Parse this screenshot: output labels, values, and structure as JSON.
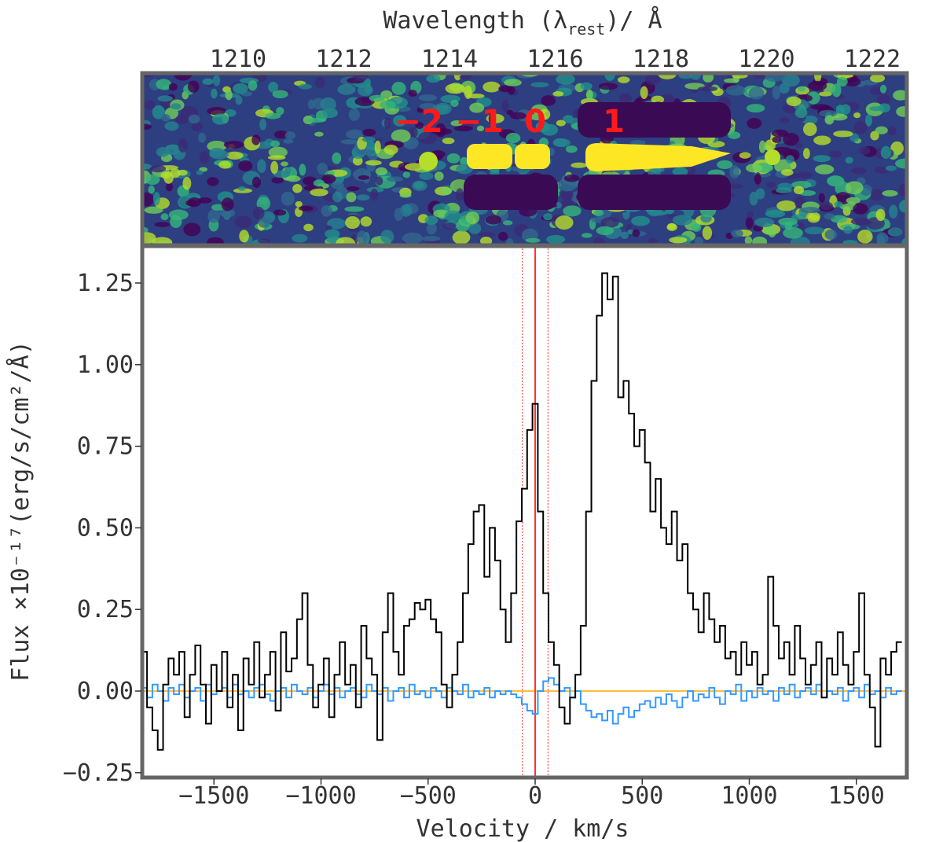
{
  "chart_data": {
    "type": "line",
    "top_axis_label": {
      "main": "Wavelength (λ",
      "sub": "rest",
      "tail": ")/ Å"
    },
    "top_ticks": [
      1210,
      1212,
      1214,
      1216,
      1218,
      1220,
      1222
    ],
    "xlabel": "Velocity / km/s",
    "ylabel": "Flux ×10⁻¹⁷(erg/s/cm²/Å)",
    "xlim": [
      -1840,
      1720
    ],
    "ylim": [
      -0.26,
      1.36
    ],
    "x_ticks": [
      -1500,
      -1000,
      -500,
      0,
      500,
      1000,
      1500
    ],
    "x_tick_labels": [
      "−1500",
      "−1000",
      "−500",
      "0",
      "500",
      "1000",
      "1500"
    ],
    "y_ticks": [
      -0.25,
      0,
      0.25,
      0.5,
      0.75,
      1.0,
      1.25
    ],
    "y_tick_labels": [
      "−0.25",
      "0.00",
      "0.25",
      "0.50",
      "0.75",
      "1.00",
      "1.25"
    ],
    "image_annotations": [
      "−2",
      "−1",
      "0",
      "1"
    ],
    "vlines": {
      "solid": 0,
      "dotted": [
        -60,
        60
      ],
      "color": "#ff3333"
    },
    "hline": {
      "y": 0,
      "color": "#ffa500"
    },
    "x_start": -1825,
    "x_step": 25,
    "series": [
      {
        "name": "flux",
        "color": "#000000",
        "values": [
          0.12,
          -0.05,
          -0.12,
          -0.18,
          0.02,
          0.1,
          0.05,
          0.12,
          -0.08,
          0.05,
          0.14,
          0.02,
          -0.1,
          0.08,
          0.0,
          0.12,
          -0.05,
          0.05,
          -0.12,
          0.1,
          0.02,
          0.15,
          -0.02,
          0.05,
          0.12,
          -0.06,
          0.18,
          0.06,
          0.1,
          0.22,
          0.3,
          0.08,
          -0.05,
          0.02,
          0.1,
          -0.08,
          0.05,
          0.15,
          0.02,
          0.08,
          -0.05,
          0.2,
          0.1,
          0.05,
          -0.15,
          0.18,
          0.3,
          0.12,
          0.05,
          0.2,
          0.22,
          0.27,
          0.25,
          0.28,
          0.22,
          0.18,
          0.02,
          -0.05,
          0.05,
          0.15,
          0.3,
          0.45,
          0.55,
          0.57,
          0.35,
          0.5,
          0.4,
          0.25,
          0.15,
          0.3,
          0.52,
          0.62,
          0.8,
          0.88,
          0.55,
          0.3,
          0.15,
          0.08,
          -0.05,
          -0.1,
          -0.02,
          0.05,
          0.2,
          0.55,
          0.95,
          1.15,
          1.28,
          1.2,
          1.27,
          0.9,
          0.95,
          0.85,
          0.75,
          0.8,
          0.7,
          0.55,
          0.65,
          0.5,
          0.45,
          0.55,
          0.4,
          0.45,
          0.3,
          0.25,
          0.18,
          0.3,
          0.22,
          0.15,
          0.2,
          0.1,
          0.12,
          0.05,
          0.15,
          0.08,
          0.12,
          0.02,
          0.05,
          0.35,
          0.2,
          0.1,
          0.15,
          0.05,
          0.2,
          0.1,
          0.02,
          0.08,
          0.15,
          -0.02,
          0.1,
          0.05,
          0.18,
          0.08,
          0.02,
          0.12,
          0.3,
          0.05,
          -0.05,
          -0.17,
          0.1,
          0.05,
          0.12,
          0.15
        ]
      },
      {
        "name": "error",
        "color": "#3399ff",
        "values": [
          0.01,
          -0.02,
          0.02,
          0.0,
          -0.03,
          0.01,
          -0.01,
          0.02,
          -0.02,
          0.0,
          0.01,
          -0.03,
          0.02,
          -0.01,
          0.0,
          0.01,
          -0.02,
          0.02,
          -0.01,
          0.0,
          -0.02,
          0.01,
          0.02,
          -0.01,
          -0.03,
          0.0,
          0.01,
          -0.02,
          0.02,
          0.0,
          -0.01,
          0.01,
          -0.02,
          0.0,
          0.02,
          -0.01,
          0.01,
          -0.02,
          0.0,
          0.01,
          -0.01,
          -0.02,
          0.02,
          0.0,
          -0.01,
          0.01,
          -0.03,
          0.0,
          0.01,
          -0.02,
          0.02,
          -0.01,
          0.0,
          -0.02,
          0.01,
          0.0,
          -0.02,
          0.01,
          0.0,
          -0.01,
          0.02,
          -0.02,
          0.0,
          -0.01,
          0.01,
          -0.02,
          0.0,
          -0.01,
          0.0,
          -0.01,
          -0.02,
          -0.04,
          -0.06,
          -0.07,
          0.0,
          0.03,
          0.04,
          0.02,
          0.0,
          0.01,
          -0.02,
          0.0,
          -0.04,
          -0.06,
          -0.08,
          -0.07,
          -0.09,
          -0.06,
          -0.1,
          -0.07,
          -0.05,
          -0.08,
          -0.06,
          -0.04,
          -0.03,
          -0.05,
          -0.02,
          -0.04,
          -0.01,
          -0.03,
          -0.05,
          -0.02,
          0.0,
          -0.03,
          -0.01,
          -0.02,
          0.01,
          -0.02,
          -0.04,
          0.0,
          -0.01,
          0.02,
          -0.03,
          0.0,
          -0.02,
          0.01,
          -0.01,
          0.0,
          -0.03,
          0.01,
          -0.01,
          0.02,
          -0.02,
          0.0,
          0.01,
          -0.01,
          0.02,
          -0.02,
          0.0,
          -0.01,
          0.01,
          -0.03,
          0.0,
          0.01,
          -0.02,
          0.02,
          -0.01,
          0.0,
          -0.02,
          0.01,
          -0.01,
          0.0
        ]
      }
    ]
  }
}
